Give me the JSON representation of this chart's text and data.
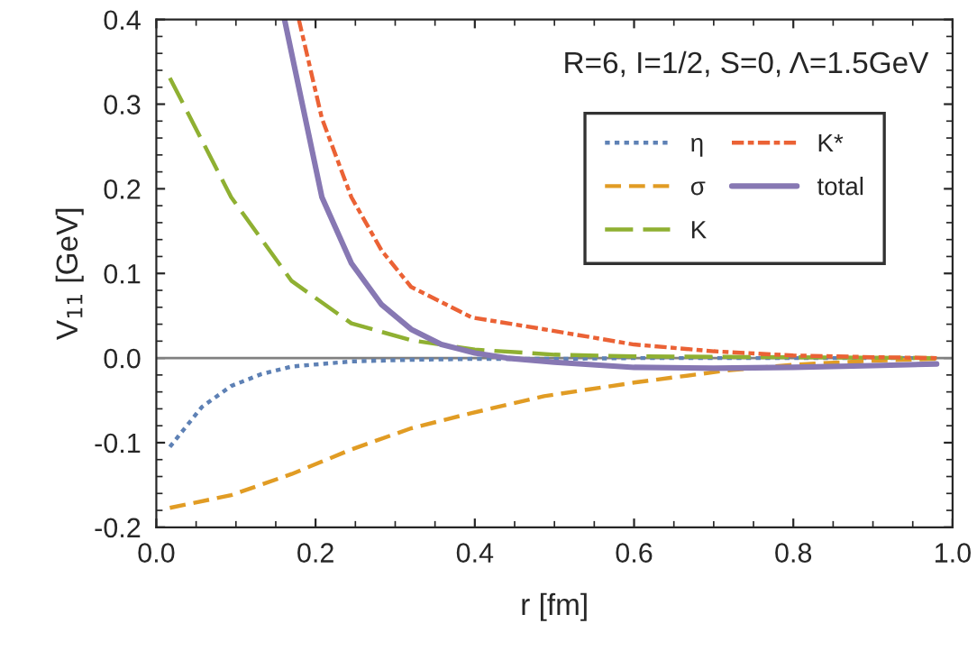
{
  "chart_data": {
    "type": "line",
    "xlabel": "r [fm]",
    "ylabel": "V$_{11}$ [GeV]",
    "annotations": [
      "R=6, I=1/2, S=0, Λ=1.5GeV"
    ],
    "xlim": [
      0,
      1
    ],
    "ylim": [
      -0.2,
      0.4
    ],
    "xticks": [
      {
        "value": 0,
        "label": "0.0"
      },
      0.2,
      0.4,
      0.6,
      0.8,
      {
        "value": 1,
        "label": "1.0"
      }
    ],
    "yticks": [
      -0.2,
      -0.1,
      {
        "value": 0,
        "label": "0.0"
      },
      0.1,
      0.2,
      0.3,
      0.4
    ],
    "legend": "top right",
    "grid": false,
    "ref_lines": [
      {
        "axis": "y",
        "value": 0,
        "color": "#808080"
      }
    ],
    "series": [
      {
        "name": "η",
        "color": "#5e81b5",
        "line_style": "dotted",
        "x": [
          0.017,
          0.057,
          0.094,
          0.132,
          0.17,
          0.245,
          0.32,
          0.4,
          0.5,
          0.6,
          0.8,
          0.98
        ],
        "values": [
          -0.105,
          -0.058,
          -0.033,
          -0.019,
          -0.01,
          -0.004,
          -0.002,
          -0.001,
          -0.001,
          0,
          0,
          0
        ]
      },
      {
        "name": "σ",
        "color": "#e19c24",
        "line_style": "dashed",
        "x": [
          0.017,
          0.094,
          0.17,
          0.245,
          0.32,
          0.396,
          0.487,
          0.6,
          0.714,
          0.8,
          0.9,
          0.98
        ],
        "values": [
          -0.177,
          -0.162,
          -0.137,
          -0.108,
          -0.083,
          -0.065,
          -0.045,
          -0.029,
          -0.015,
          -0.008,
          -0.003,
          -0.001
        ]
      },
      {
        "name": "K",
        "color": "#8fb032",
        "line_style": "longdash",
        "x": [
          0.017,
          0.094,
          0.17,
          0.245,
          0.32,
          0.4,
          0.5,
          0.6,
          0.8,
          0.98
        ],
        "values": [
          0.331,
          0.19,
          0.091,
          0.041,
          0.021,
          0.01,
          0.004,
          0.002,
          0.001,
          0
        ]
      },
      {
        "name": "K*",
        "color": "#eb6235",
        "line_style": "dashdot",
        "x": [
          0.179,
          0.208,
          0.245,
          0.283,
          0.32,
          0.396,
          0.487,
          0.6,
          0.7,
          0.8,
          0.9,
          0.98
        ],
        "values": [
          0.4,
          0.283,
          0.19,
          0.127,
          0.084,
          0.048,
          0.034,
          0.016,
          0.008,
          0.003,
          0.001,
          0
        ]
      },
      {
        "name": "total",
        "color": "#8778b3",
        "line_style": "solid",
        "x": [
          0.161,
          0.208,
          0.245,
          0.283,
          0.32,
          0.358,
          0.4,
          0.44,
          0.5,
          0.6,
          0.7,
          0.8,
          0.9,
          0.98
        ],
        "values": [
          0.4,
          0.19,
          0.112,
          0.063,
          0.034,
          0.016,
          0.006,
          0,
          -0.005,
          -0.011,
          -0.012,
          -0.011,
          -0.009,
          -0.007
        ]
      }
    ]
  }
}
